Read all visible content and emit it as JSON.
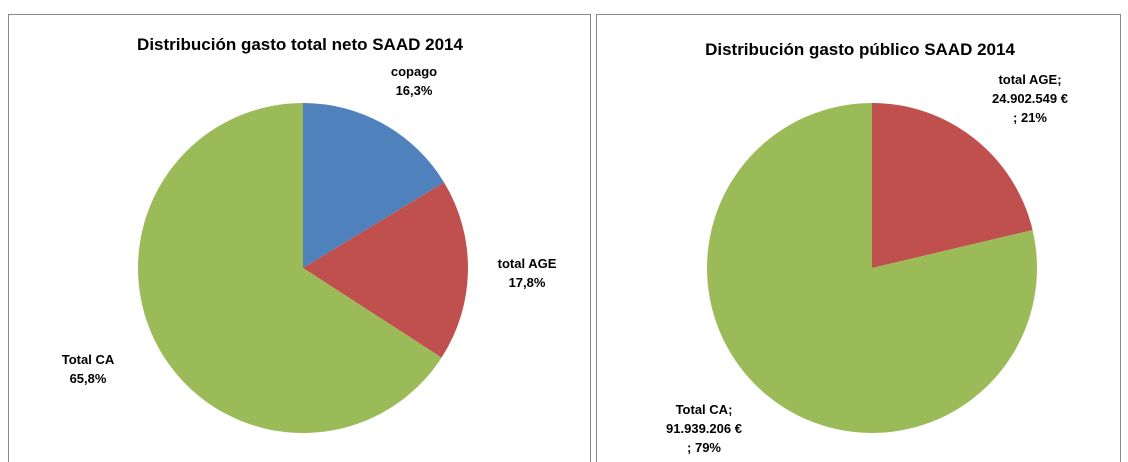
{
  "chart_data": [
    {
      "type": "pie",
      "title": "Distribución gasto total neto SAAD 2014",
      "categories": [
        "copago",
        "total AGE",
        "Total CA"
      ],
      "values": [
        16.3,
        17.8,
        65.8
      ],
      "value_labels": [
        "16,3%",
        "17,8%",
        "65,8%"
      ],
      "colors": [
        "#4f81bd",
        "#c0504d",
        "#9bbb59"
      ]
    },
    {
      "type": "pie",
      "title": "Distribución gasto público SAAD 2014",
      "categories": [
        "total AGE",
        "Total CA"
      ],
      "separator": ";",
      "values": [
        24902549,
        91939206
      ],
      "value_labels": [
        "24.902.549 €",
        "91.939.206 €"
      ],
      "percent_labels": [
        "21%",
        "79%"
      ],
      "colors": [
        "#c0504d",
        "#9bbb59"
      ]
    }
  ]
}
